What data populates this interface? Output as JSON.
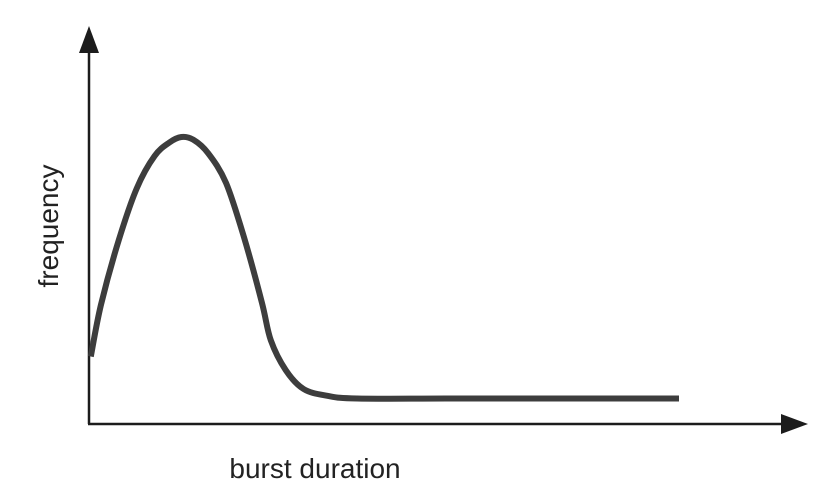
{
  "chart_data": {
    "type": "line",
    "title": "",
    "xlabel": "burst duration",
    "ylabel": "frequency",
    "show_ticks": false,
    "grid": false,
    "xlim": [
      0,
      100
    ],
    "ylim": [
      0,
      100
    ],
    "series": [
      {
        "values": [
          {
            "x": 0.3,
            "y": 19
          },
          {
            "x": 2,
            "y": 38
          },
          {
            "x": 5,
            "y": 62
          },
          {
            "x": 8,
            "y": 81
          },
          {
            "x": 11,
            "y": 93
          },
          {
            "x": 13.5,
            "y": 98
          },
          {
            "x": 15.5,
            "y": 100
          },
          {
            "x": 17.5,
            "y": 99
          },
          {
            "x": 20,
            "y": 94
          },
          {
            "x": 23,
            "y": 83
          },
          {
            "x": 26,
            "y": 63
          },
          {
            "x": 29,
            "y": 39
          },
          {
            "x": 30.5,
            "y": 25
          },
          {
            "x": 33,
            "y": 14
          },
          {
            "x": 36,
            "y": 7
          },
          {
            "x": 40,
            "y": 4.5
          },
          {
            "x": 45,
            "y": 3.5
          },
          {
            "x": 60,
            "y": 3.5
          },
          {
            "x": 80,
            "y": 3.5
          },
          {
            "x": 99,
            "y": 3.5
          }
        ]
      }
    ]
  },
  "colors": {
    "axis": "#1c1c1c",
    "line": "#3d3d3d"
  }
}
